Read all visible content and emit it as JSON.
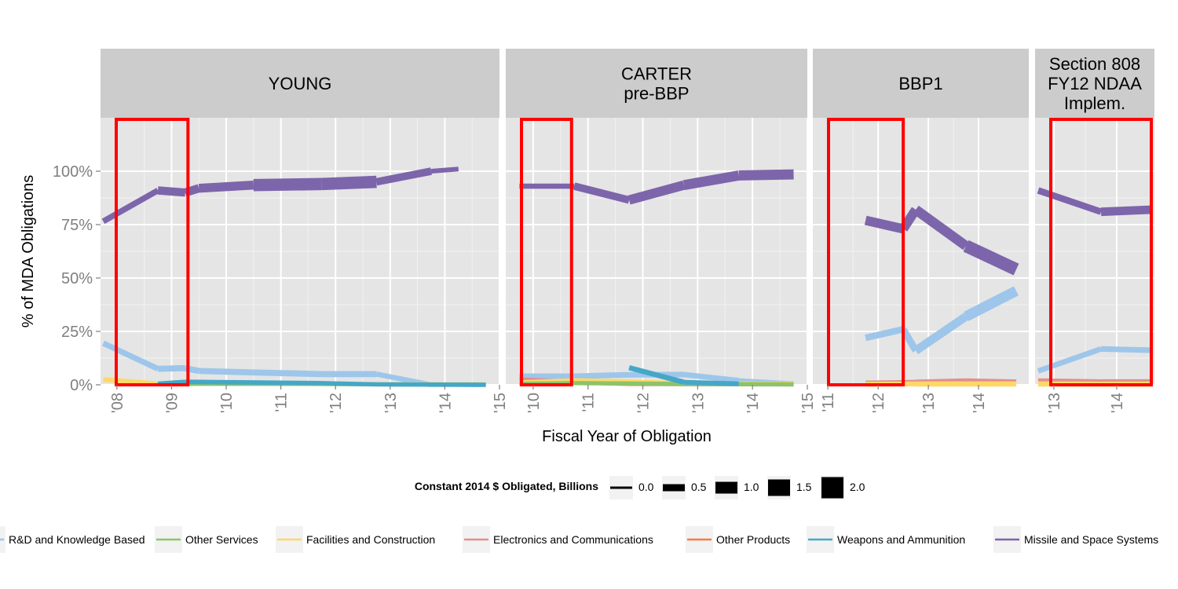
{
  "chart_data": {
    "type": "line",
    "ylabel": "% of  MDA  Obligations",
    "xlabel": "Fiscal Year of Obligation",
    "ylim": [
      0,
      1.25
    ],
    "y_ticks": [
      0,
      0.25,
      0.5,
      0.75,
      1.0
    ],
    "y_tick_labels": [
      "0%",
      "25%",
      "50%",
      "75%",
      "100%"
    ],
    "grid": true,
    "legend_position": "bottom",
    "size_legend": {
      "title": "Constant 2014 $ Obligated, Billions",
      "values": [
        0.0,
        0.5,
        1.0,
        1.5,
        2.0
      ],
      "labels": [
        "0.0",
        "0.5",
        "1.0",
        "1.5",
        "2.0"
      ]
    },
    "color_legend": [
      {
        "name": "R&D and Knowledge Based",
        "color": "#9dc6ea"
      },
      {
        "name": "Other Services",
        "color": "#8dc36a"
      },
      {
        "name": "Facilities and Construction",
        "color": "#fdd866"
      },
      {
        "name": "Electronics and Communications",
        "color": "#e38e8e"
      },
      {
        "name": "Other Products",
        "color": "#f27c43"
      },
      {
        "name": "Weapons and Ammunition",
        "color": "#45a7c8"
      },
      {
        "name": "Missile and Space Systems",
        "color": "#7d65ab"
      }
    ],
    "panels": [
      {
        "title": [
          "YOUNG"
        ],
        "xlim": [
          2007.7,
          2015.0
        ],
        "x_ticks": [
          2008,
          2009,
          2010,
          2011,
          2012,
          2013,
          2014,
          2015
        ],
        "x_tick_labels": [
          "'08",
          "'09",
          "'10",
          "'11",
          "'12",
          "'13",
          "'14",
          "'15"
        ],
        "highlight": [
          2007.7,
          2009.3
        ],
        "series": [
          {
            "color": "#7d65ab",
            "x": [
              2007.75,
              2008.75,
              2009.25,
              2009.5,
              2010.5,
              2011.75,
              2012.75,
              2013.75,
              2014.25
            ],
            "y": [
              0.765,
              0.91,
              0.9,
              0.92,
              0.935,
              0.94,
              0.95,
              1.0,
              1.01
            ],
            "size": [
              0.2,
              0.55,
              0.7,
              0.6,
              0.8,
              1.3,
              0.8,
              0.3,
              0.2
            ]
          },
          {
            "color": "#9dc6ea",
            "x": [
              2007.75,
              2008.75,
              2009.25,
              2009.5,
              2010.5,
              2011.75,
              2012.75,
              2013.75,
              2014.75
            ],
            "y": [
              0.195,
              0.075,
              0.078,
              0.065,
              0.058,
              0.05,
              0.05,
              0.0,
              0.0
            ],
            "size": [
              0.3,
              0.4,
              0.4,
              0.4,
              0.4,
              0.4,
              0.4,
              0.2,
              0.2
            ]
          },
          {
            "color": "#fdd866",
            "x": [
              2007.75,
              2008.75,
              2009.75,
              2011.75,
              2012.75,
              2014.75
            ],
            "y": [
              0.025,
              0.005,
              0.005,
              0.005,
              0.003,
              0.002
            ],
            "size": [
              0.3,
              0.2,
              0.2,
              0.2,
              0.2,
              0.2
            ]
          },
          {
            "color": "#8dc36a",
            "x": [
              2008.75,
              2009.75,
              2011.75,
              2012.75,
              2014.75
            ],
            "y": [
              0.004,
              0.005,
              0.004,
              0.002,
              0.001
            ],
            "size": [
              0.2,
              0.2,
              0.2,
              0.2,
              0.2
            ]
          },
          {
            "color": "#45a7c8",
            "x": [
              2008.75,
              2009.25,
              2011.75,
              2012.75,
              2014.75
            ],
            "y": [
              0.005,
              0.014,
              0.008,
              0.002,
              0.0
            ],
            "size": [
              0.2,
              0.25,
              0.2,
              0.2,
              0.2
            ]
          }
        ]
      },
      {
        "title": [
          "CARTER",
          "pre-BBP"
        ],
        "xlim": [
          2009.5,
          2015.0
        ],
        "x_ticks": [
          2010,
          2011,
          2012,
          2013,
          2014,
          2015
        ],
        "x_tick_labels": [
          "'10",
          "'11",
          "'12",
          "'13",
          "'14",
          "'15"
        ],
        "highlight": [
          2009.5,
          2010.7
        ],
        "series": [
          {
            "color": "#7d65ab",
            "x": [
              2009.75,
              2010.75,
              2011.75,
              2012.75,
              2013.75,
              2014.75
            ],
            "y": [
              0.93,
              0.93,
              0.865,
              0.935,
              0.98,
              0.985
            ],
            "size": [
              0.25,
              0.35,
              0.75,
              0.75,
              0.9,
              0.75
            ]
          },
          {
            "color": "#9dc6ea",
            "x": [
              2009.75,
              2010.75,
              2011.75,
              2012.75,
              2013.75,
              2014.75
            ],
            "y": [
              0.04,
              0.04,
              0.047,
              0.048,
              0.02,
              0.005
            ],
            "size": [
              0.35,
              0.35,
              0.35,
              0.35,
              0.3,
              0.2
            ]
          },
          {
            "color": "#e38e8e",
            "x": [
              2009.75,
              2010.75,
              2011.75,
              2014.75
            ],
            "y": [
              0.025,
              0.012,
              0.004,
              0.002
            ],
            "size": [
              0.3,
              0.2,
              0.2,
              0.2
            ]
          },
          {
            "color": "#fdd866",
            "x": [
              2009.75,
              2010.75,
              2011.75,
              2012.75,
              2014.75
            ],
            "y": [
              0.01,
              0.02,
              0.015,
              0.008,
              0.005
            ],
            "size": [
              0.25,
              0.25,
              0.25,
              0.2,
              0.2
            ]
          },
          {
            "color": "#8dc36a",
            "x": [
              2009.75,
              2010.75,
              2011.75,
              2012.75,
              2014.75
            ],
            "y": [
              0.005,
              0.008,
              0.006,
              0.004,
              0.002
            ],
            "size": [
              0.2,
              0.2,
              0.2,
              0.2,
              0.2
            ]
          },
          {
            "color": "#45a7c8",
            "x": [
              2011.75,
              2012.75,
              2013.75
            ],
            "y": [
              0.08,
              0.012,
              0.005
            ],
            "size": [
              0.3,
              0.3,
              0.2
            ]
          }
        ]
      },
      {
        "title": [
          "BBP1"
        ],
        "xlim": [
          2010.7,
          2015.0
        ],
        "x_ticks": [
          2011,
          2012,
          2013,
          2014
        ],
        "x_tick_labels": [
          "'11",
          "'12",
          "'13",
          "'14"
        ],
        "highlight": [
          2010.7,
          2012.5
        ],
        "series": [
          {
            "color": "#7d65ab",
            "x": [
              2011.75,
              2012.5,
              2012.75,
              2013.75,
              2014.75
            ],
            "y": [
              0.77,
              0.73,
              0.82,
              0.65,
              0.54
            ],
            "size": [
              0.6,
              0.9,
              0.6,
              1.0,
              1.2
            ]
          },
          {
            "color": "#9dc6ea",
            "x": [
              2011.75,
              2012.5,
              2012.75,
              2013.75,
              2014.75
            ],
            "y": [
              0.22,
              0.26,
              0.16,
              0.32,
              0.44
            ],
            "size": [
              0.4,
              0.5,
              0.5,
              0.8,
              0.9
            ]
          },
          {
            "color": "#e38e8e",
            "x": [
              2011.75,
              2012.75,
              2013.75,
              2014.75
            ],
            "y": [
              0.008,
              0.012,
              0.018,
              0.013
            ],
            "size": [
              0.25,
              0.3,
              0.3,
              0.3
            ]
          },
          {
            "color": "#fdd866",
            "x": [
              2011.75,
              2012.75,
              2013.75,
              2014.75
            ],
            "y": [
              0.003,
              0.004,
              0.004,
              0.004
            ],
            "size": [
              0.25,
              0.3,
              0.3,
              0.3
            ]
          }
        ]
      },
      {
        "title": [
          "Section 808",
          "FY12 NDAA",
          "Implem."
        ],
        "xlim": [
          2012.7,
          2014.6
        ],
        "x_ticks": [
          2013,
          2014
        ],
        "x_tick_labels": [
          "'13",
          "'14"
        ],
        "highlight": [
          2012.7,
          2014.6
        ],
        "series": [
          {
            "color": "#7d65ab",
            "x": [
              2012.75,
              2013.75,
              2014.55
            ],
            "y": [
              0.91,
              0.81,
              0.82
            ],
            "size": [
              0.3,
              0.6,
              0.7
            ]
          },
          {
            "color": "#9dc6ea",
            "x": [
              2012.75,
              2013.75,
              2014.55
            ],
            "y": [
              0.065,
              0.168,
              0.162
            ],
            "size": [
              0.3,
              0.35,
              0.35
            ]
          },
          {
            "color": "#e38e8e",
            "x": [
              2012.75,
              2013.75,
              2014.55
            ],
            "y": [
              0.018,
              0.014,
              0.014
            ],
            "size": [
              0.3,
              0.3,
              0.3
            ]
          },
          {
            "color": "#fdd866",
            "x": [
              2012.75,
              2013.75,
              2014.55
            ],
            "y": [
              0.004,
              0.003,
              0.003
            ],
            "size": [
              0.3,
              0.3,
              0.3
            ]
          }
        ]
      }
    ]
  }
}
